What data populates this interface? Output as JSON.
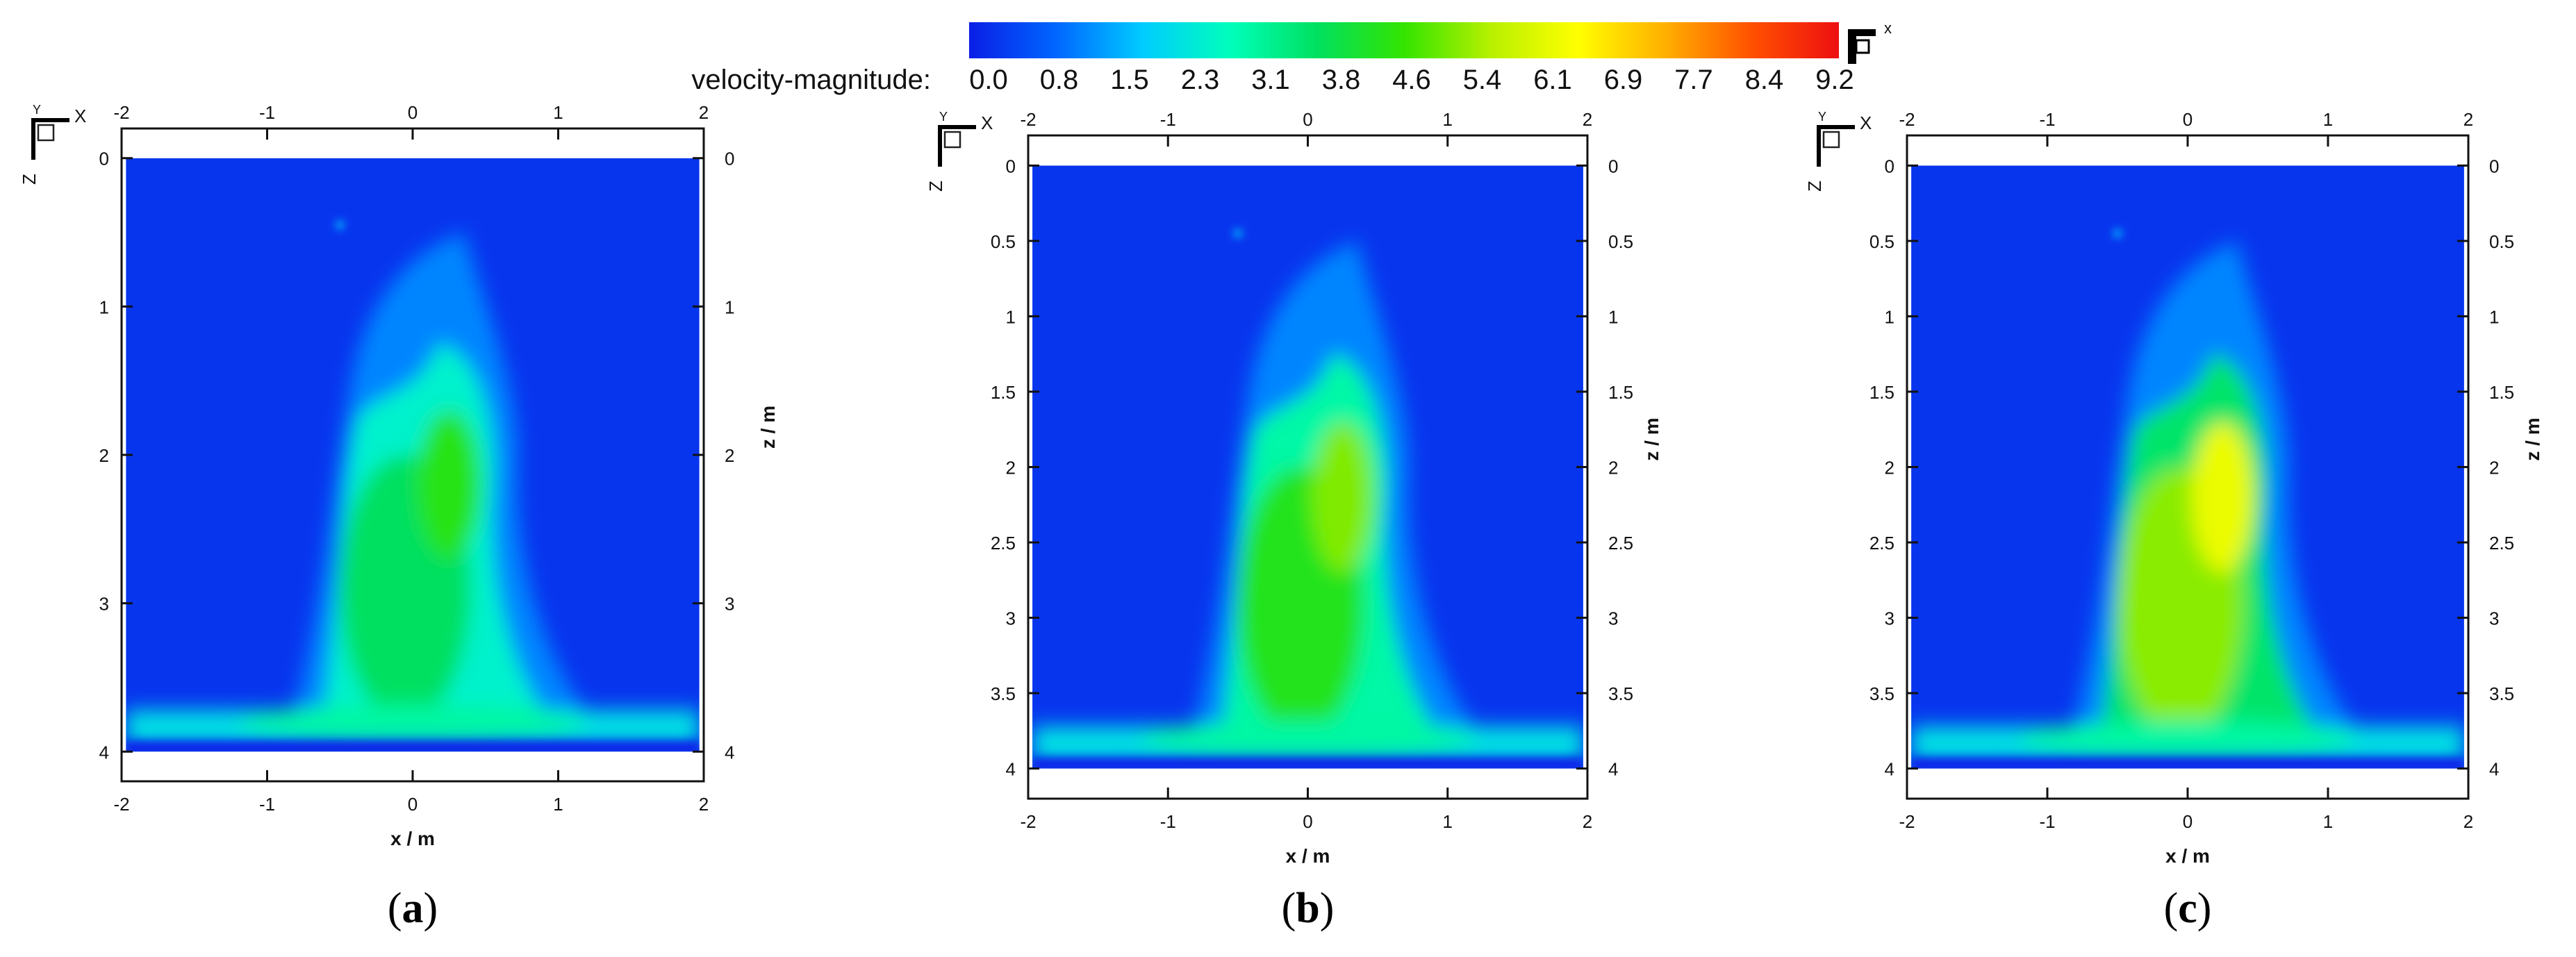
{
  "colorbar": {
    "label": "velocity-magnitude:",
    "ticks": [
      "0.0",
      "0.8",
      "1.5",
      "2.3",
      "3.1",
      "3.8",
      "4.6",
      "5.4",
      "6.1",
      "6.9",
      "7.7",
      "8.4",
      "9.2"
    ],
    "range": [
      0.0,
      9.2
    ],
    "colors": [
      "#0a1ee6",
      "#0066ff",
      "#00ccff",
      "#00ffbb",
      "#00e060",
      "#33e400",
      "#b8f000",
      "#ffff00",
      "#ffb000",
      "#ff5000",
      "#ee1010"
    ],
    "axis_icon_label": "x"
  },
  "axis_icon": {
    "x_label": "X",
    "z_label": "Z",
    "y_label": "Y"
  },
  "panels": [
    {
      "caption_prefix": "(",
      "caption_letter": "a",
      "caption_suffix": ")",
      "xlabel": "x / m",
      "ylabel": "z / m",
      "x_ticks": [
        "-2",
        "-1",
        "0",
        "1",
        "2"
      ],
      "z_ticks": [
        "0",
        "1",
        "2",
        "3",
        "4"
      ],
      "chart_data": {
        "type": "heatmap",
        "xlim": [
          -2,
          2
        ],
        "zlim": [
          -0.2,
          4.2
        ],
        "domain_z": [
          0,
          4
        ],
        "x_ticks": [
          -2,
          -1,
          0,
          1,
          2
        ],
        "z_ticks": [
          0,
          1,
          2,
          3,
          4
        ],
        "peak_velocity": 4.6
      }
    },
    {
      "caption_prefix": "(",
      "caption_letter": "b",
      "caption_suffix": ")",
      "xlabel": "x / m",
      "ylabel": "z / m",
      "x_ticks": [
        "-2",
        "-1",
        "0",
        "1",
        "2"
      ],
      "z_ticks": [
        "0",
        "0.5",
        "1",
        "1.5",
        "2",
        "2.5",
        "3",
        "3.5",
        "4"
      ],
      "chart_data": {
        "type": "heatmap",
        "xlim": [
          -2,
          2
        ],
        "zlim": [
          -0.2,
          4.2
        ],
        "domain_z": [
          0,
          4
        ],
        "x_ticks": [
          -2,
          -1,
          0,
          1,
          2
        ],
        "z_ticks": [
          0,
          0.5,
          1,
          1.5,
          2,
          2.5,
          3,
          3.5,
          4
        ],
        "peak_velocity": 5.4
      }
    },
    {
      "caption_prefix": "(",
      "caption_letter": "c",
      "caption_suffix": ")",
      "xlabel": "x / m",
      "ylabel": "z / m",
      "x_ticks": [
        "-2",
        "-1",
        "0",
        "1",
        "2"
      ],
      "z_ticks": [
        "0",
        "0.5",
        "1",
        "1.5",
        "2",
        "2.5",
        "3",
        "3.5",
        "4"
      ],
      "chart_data": {
        "type": "heatmap",
        "xlim": [
          -2,
          2
        ],
        "zlim": [
          -0.2,
          4.2
        ],
        "domain_z": [
          0,
          4
        ],
        "x_ticks": [
          -2,
          -1,
          0,
          1,
          2
        ],
        "z_ticks": [
          0,
          0.5,
          1,
          1.5,
          2,
          2.5,
          3,
          3.5,
          4
        ],
        "peak_velocity": 6.5
      }
    }
  ]
}
